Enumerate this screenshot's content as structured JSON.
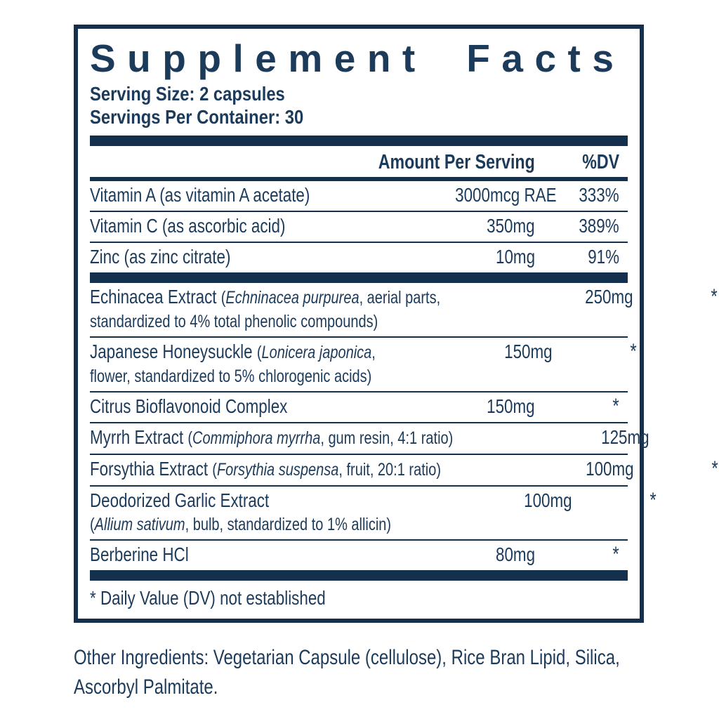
{
  "colors": {
    "navy": "#14304d",
    "ink": "#1c3b5b"
  },
  "panel": {
    "title": "Supplement Facts",
    "serving_size": "Serving Size: 2 capsules",
    "servings_per_container": "Servings Per Container: 30",
    "header": {
      "amount": "Amount Per Serving",
      "dv": "%DV"
    },
    "rows": [
      {
        "lines": [
          [
            {
              "t": "Vitamin A (as vitamin A acetate)"
            }
          ]
        ],
        "amount": "3000mcg RAE",
        "dv": "333%"
      },
      {
        "lines": [
          [
            {
              "t": "Vitamin C (as ascorbic acid)"
            }
          ]
        ],
        "amount": "350mg",
        "dv": "389%"
      },
      {
        "lines": [
          [
            {
              "t": "Zinc (as zinc citrate)"
            }
          ]
        ],
        "amount": "10mg",
        "dv": "91%",
        "bar_after": true
      },
      {
        "lines": [
          [
            {
              "t": "Echinacea Extract "
            },
            {
              "t": "(",
              "s": true
            },
            {
              "t": "Echninacea purpurea",
              "i": true
            },
            {
              "t": ", aerial parts,",
              "s": true
            }
          ],
          [
            {
              "t": "standardized to 4% total phenolic compounds)",
              "s": true
            }
          ]
        ],
        "amount": "250mg",
        "dv": "*"
      },
      {
        "lines": [
          [
            {
              "t": "Japanese Honeysuckle "
            },
            {
              "t": "(",
              "s": true
            },
            {
              "t": "Lonicera japonica",
              "i": true
            },
            {
              "t": ",",
              "s": true
            }
          ],
          [
            {
              "t": "flower, standardized to 5% chlorogenic acids)",
              "s": true
            }
          ]
        ],
        "amount": "150mg",
        "dv": "*"
      },
      {
        "lines": [
          [
            {
              "t": "Citrus Bioflavonoid Complex"
            }
          ]
        ],
        "amount": "150mg",
        "dv": "*"
      },
      {
        "lines": [
          [
            {
              "t": "Myrrh Extract "
            },
            {
              "t": "(",
              "s": true
            },
            {
              "t": "Commiphora myrrha",
              "i": true
            },
            {
              "t": ", gum resin, 4:1 ratio)",
              "s": true
            }
          ]
        ],
        "amount": "125mg",
        "dv": "*"
      },
      {
        "lines": [
          [
            {
              "t": "Forsythia Extract "
            },
            {
              "t": "(",
              "s": true
            },
            {
              "t": "Forsythia suspensa",
              "i": true
            },
            {
              "t": ", fruit, 20:1 ratio)",
              "s": true
            }
          ]
        ],
        "amount": "100mg",
        "dv": "*"
      },
      {
        "lines": [
          [
            {
              "t": "Deodorized Garlic Extract"
            }
          ],
          [
            {
              "t": "(",
              "s": true
            },
            {
              "t": "Allium sativum",
              "i": true
            },
            {
              "t": ", bulb, standardized to 1% allicin)",
              "s": true
            }
          ]
        ],
        "amount": "100mg",
        "dv": "*"
      },
      {
        "lines": [
          [
            {
              "t": "Berberine HCl"
            }
          ]
        ],
        "amount": "80mg",
        "dv": "*",
        "bar_after": true
      }
    ],
    "footnote": "* Daily Value (DV) not established"
  },
  "other_ingredients": "Other Ingredients: Vegetarian Capsule (cellulose), Rice Bran Lipid, Silica,\nAscorbyl Palmitate."
}
